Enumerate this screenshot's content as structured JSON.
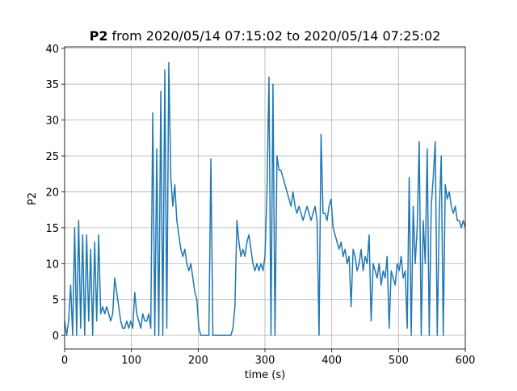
{
  "chart_data": {
    "type": "line",
    "title_bold": "P2",
    "title": "from 2020/05/14 07:15:02 to 2020/05/14 07:25:02",
    "xlabel": "time (s)",
    "ylabel": "P2",
    "color": "#1f77b4",
    "grid": true,
    "xlim": [
      0,
      600
    ],
    "ylim": [
      -1.9,
      40.2
    ],
    "xticks": [
      0,
      100,
      200,
      300,
      400,
      500,
      600
    ],
    "yticks": [
      0,
      5,
      10,
      15,
      20,
      25,
      30,
      35,
      40
    ],
    "x": [
      0,
      3,
      6,
      9,
      12,
      15,
      18,
      21,
      24,
      27,
      30,
      33,
      36,
      39,
      42,
      45,
      48,
      51,
      54,
      57,
      60,
      63,
      66,
      69,
      72,
      75,
      78,
      81,
      84,
      87,
      90,
      93,
      96,
      99,
      102,
      105,
      108,
      111,
      114,
      117,
      120,
      123,
      126,
      129,
      132,
      135,
      138,
      141,
      144,
      147,
      150,
      153,
      156,
      159,
      162,
      165,
      168,
      171,
      174,
      177,
      180,
      183,
      186,
      189,
      192,
      195,
      198,
      201,
      204,
      207,
      210,
      213,
      216,
      219,
      222,
      225,
      228,
      231,
      234,
      237,
      240,
      243,
      246,
      249,
      252,
      255,
      258,
      261,
      264,
      267,
      270,
      273,
      276,
      279,
      282,
      285,
      288,
      291,
      294,
      297,
      300,
      303,
      306,
      309,
      312,
      315,
      318,
      321,
      324,
      327,
      330,
      333,
      336,
      339,
      342,
      345,
      348,
      351,
      354,
      357,
      360,
      363,
      366,
      369,
      372,
      375,
      378,
      381,
      384,
      387,
      390,
      393,
      396,
      399,
      402,
      405,
      408,
      411,
      414,
      417,
      420,
      423,
      426,
      429,
      432,
      435,
      438,
      441,
      444,
      447,
      450,
      453,
      456,
      459,
      462,
      465,
      468,
      471,
      474,
      477,
      480,
      483,
      486,
      489,
      492,
      495,
      498,
      501,
      504,
      507,
      510,
      513,
      516,
      519,
      522,
      525,
      528,
      531,
      534,
      537,
      540,
      543,
      546,
      549,
      552,
      555,
      558,
      561,
      564,
      567,
      570,
      573,
      576,
      579,
      582,
      585,
      588,
      591,
      594,
      597,
      600
    ],
    "values": [
      2,
      0,
      2,
      7,
      0,
      15,
      0,
      16,
      1,
      14,
      0,
      14,
      2,
      12,
      0,
      13,
      2,
      14,
      3,
      4,
      3,
      4,
      3,
      2,
      3,
      8,
      6,
      4,
      2,
      1,
      1,
      2,
      1,
      2,
      1,
      6,
      3,
      2,
      1,
      3,
      2,
      2,
      3,
      1,
      31,
      0,
      26,
      0,
      34,
      0,
      37,
      1,
      38,
      22,
      18,
      21,
      16,
      14,
      12,
      11,
      12,
      10,
      9,
      10,
      8,
      6,
      5,
      1,
      0,
      0,
      0,
      0,
      0,
      24.6,
      0,
      0,
      0,
      0,
      0,
      0,
      0,
      0,
      0,
      0,
      1,
      4,
      16,
      13,
      11,
      12,
      11,
      13,
      14,
      12,
      10,
      9,
      10,
      9,
      10,
      9,
      11,
      20,
      36,
      0,
      35,
      0,
      25,
      23,
      23,
      22,
      21,
      20,
      19,
      18,
      20,
      18,
      17,
      18,
      17,
      16,
      17,
      18,
      17,
      16,
      17,
      18,
      16,
      0,
      28,
      17,
      17,
      16,
      18,
      19,
      15,
      14,
      13,
      12,
      13,
      11,
      12,
      10,
      11,
      4,
      12,
      11,
      9,
      10,
      12,
      9,
      11,
      10,
      14,
      2,
      10,
      9,
      8,
      10,
      7,
      9,
      8,
      11,
      1,
      9,
      8,
      7,
      10,
      9,
      11,
      8,
      9,
      1,
      22,
      0,
      18,
      10,
      15,
      27,
      0,
      16,
      10,
      26,
      0,
      18,
      22,
      27,
      0,
      17,
      25,
      0,
      21,
      19,
      20,
      18,
      17,
      18,
      16,
      16,
      15,
      16,
      15
    ]
  }
}
